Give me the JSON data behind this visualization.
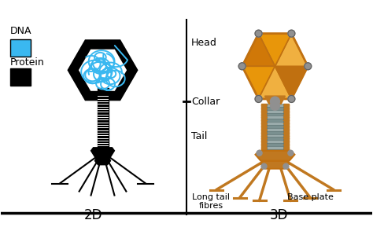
{
  "bg_color": "#ffffff",
  "label_head": "Head",
  "label_collar": "Collar",
  "label_tail": "Tail",
  "label_long_tail": "Long tail\nfibres",
  "label_base_plate": "Base plate",
  "label_2d": "2D",
  "label_3d": "3D",
  "label_dna": "DNA",
  "label_protein": "Protein",
  "dna_color": "#3ab8f0",
  "protein_color": "#000000",
  "head_3d_color": "#e8960a",
  "head_3d_dark": "#c07010",
  "tail_3d_color_a": "#9aabab",
  "tail_3d_color_b": "#7a9090",
  "leg_color": "#c07820",
  "leg_dark": "#8b5a00",
  "connector_color": "#909090",
  "font_size_labels": 9,
  "font_size_bottom": 12
}
